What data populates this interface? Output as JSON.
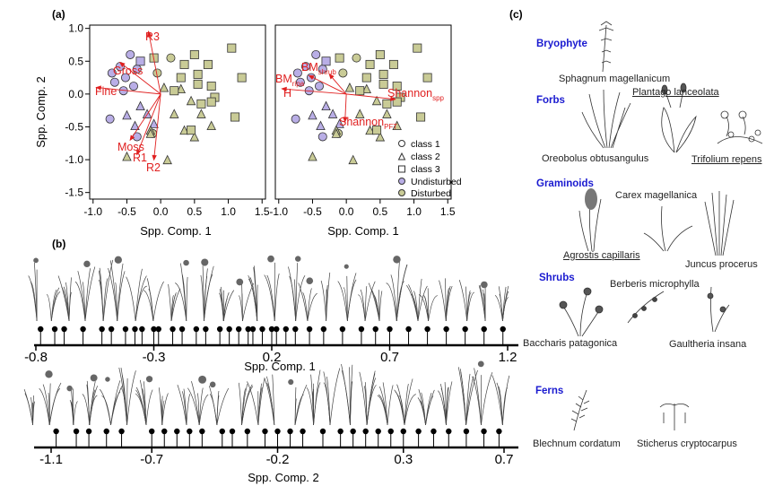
{
  "panel_labels": {
    "a": "(a)",
    "b": "(b)",
    "c": "(c)"
  },
  "panel_a": {
    "ylabel": "Spp. Comp. 2",
    "xlabel": "Spp. Comp. 1",
    "x_ticks": [
      "-1.0",
      "-0.5",
      "0.0",
      "0.5",
      "1.0",
      "1.5"
    ],
    "y_ticks": [
      "1.0",
      "0.5",
      "0.0",
      "-0.5",
      "-1.0",
      "-1.5"
    ],
    "left_vectors": [
      "R3",
      "Gross",
      "Fine",
      "Moss",
      "R1",
      "R2"
    ],
    "right_vectors": {
      "bm_ripa": {
        "base": "BM",
        "sub": "ripa"
      },
      "bm_shrub": {
        "base": "BM",
        "sub": "shrub"
      },
      "h": {
        "base": "H",
        "sub": ""
      },
      "shannon_spp": {
        "base": "Shannon",
        "sub": "spp"
      },
      "shannon_pft": {
        "base": "Shannon",
        "sub": "PFT"
      }
    },
    "legend": [
      "class 1",
      "class 2",
      "class 3",
      "Undisturbed",
      "Disturbed"
    ]
  },
  "panel_b": {
    "axis1_ticks": [
      "-0.8",
      "-0.3",
      "0.2",
      "0.7",
      "1.2"
    ],
    "axis1_label": "Spp. Comp. 1",
    "axis2_ticks": [
      "-1.1",
      "-0.7",
      "-0.2",
      "0.3",
      "0.7"
    ],
    "axis2_label": "Spp. Comp. 2"
  },
  "panel_c": {
    "groups": {
      "bryophyte": "Bryophyte",
      "forbs": "Forbs",
      "graminoids": "Graminoids",
      "shrubs": "Shrubs",
      "ferns": "Ferns"
    },
    "species": {
      "sphagnum": "Sphagnum magellanicum",
      "plantago": "Plantago lanceolata",
      "oreobolus": "Oreobolus obtusangulus",
      "trifolium": "Trifolium repens",
      "carex": "Carex magellanica",
      "agrostis": "Agrostis capillaris",
      "juncus": "Juncus procerus",
      "berberis": "Berberis microphylla",
      "baccharis": "Baccharis patagonica",
      "gaultheria": "Gaultheria insana",
      "blechnum": "Blechnum cordatum",
      "sticherus": "Sticherus cryptocarpus"
    }
  },
  "colors": {
    "undisturbed": "#b9aee6",
    "disturbed": "#c9cb96",
    "vector": "#e02020",
    "group_heading": "#1a1ad0"
  },
  "chart_data": [
    {
      "type": "scatter",
      "panel": "a-left",
      "xlabel": "Spp. Comp. 1",
      "ylabel": "Spp. Comp. 2",
      "xlim": [
        -1.05,
        1.55
      ],
      "ylim": [
        -1.6,
        1.05
      ],
      "series": [
        {
          "name": "Undisturbed",
          "points": [
            {
              "x": -0.72,
              "y": 0.32,
              "class": 1
            },
            {
              "x": -0.6,
              "y": 0.42,
              "class": 1
            },
            {
              "x": -0.45,
              "y": 0.6,
              "class": 1
            },
            {
              "x": -0.52,
              "y": 0.25,
              "class": 1
            },
            {
              "x": -0.4,
              "y": 0.12,
              "class": 1
            },
            {
              "x": -0.68,
              "y": 0.18,
              "class": 1
            },
            {
              "x": -0.55,
              "y": 0.05,
              "class": 1
            },
            {
              "x": -0.35,
              "y": 0.38,
              "class": 1
            },
            {
              "x": -0.75,
              "y": -0.38,
              "class": 1
            },
            {
              "x": -0.35,
              "y": -0.65,
              "class": 1
            },
            {
              "x": -0.3,
              "y": -0.18,
              "class": 2
            },
            {
              "x": -0.5,
              "y": -0.32,
              "class": 2
            },
            {
              "x": -0.1,
              "y": -0.45,
              "class": 2
            },
            {
              "x": -0.38,
              "y": -0.48,
              "class": 2
            },
            {
              "x": -0.2,
              "y": -0.3,
              "class": 2
            },
            {
              "x": -0.3,
              "y": 0.5,
              "class": 3
            }
          ]
        },
        {
          "name": "Disturbed",
          "points": [
            {
              "x": -0.05,
              "y": 0.32,
              "class": 1
            },
            {
              "x": 0.15,
              "y": 0.55,
              "class": 1
            },
            {
              "x": -0.12,
              "y": -0.6,
              "class": 1
            },
            {
              "x": 0.05,
              "y": 0.1,
              "class": 2
            },
            {
              "x": 0.3,
              "y": 0.08,
              "class": 2
            },
            {
              "x": 0.45,
              "y": -0.1,
              "class": 2
            },
            {
              "x": 0.6,
              "y": -0.3,
              "class": 2
            },
            {
              "x": 0.2,
              "y": -0.3,
              "class": 2
            },
            {
              "x": 0.35,
              "y": -0.55,
              "class": 2
            },
            {
              "x": 0.75,
              "y": -0.48,
              "class": 2
            },
            {
              "x": 0.5,
              "y": -0.65,
              "class": 2
            },
            {
              "x": 0.1,
              "y": -1.0,
              "class": 2
            },
            {
              "x": -0.15,
              "y": -0.55,
              "class": 2
            },
            {
              "x": -0.5,
              "y": -0.95,
              "class": 2
            },
            {
              "x": -0.15,
              "y": -0.6,
              "class": 2
            },
            {
              "x": 0.35,
              "y": 0.45,
              "class": 3
            },
            {
              "x": 0.5,
              "y": 0.6,
              "class": 3
            },
            {
              "x": 0.7,
              "y": 0.45,
              "class": 3
            },
            {
              "x": 0.55,
              "y": 0.3,
              "class": 3
            },
            {
              "x": 0.3,
              "y": 0.25,
              "class": 3
            },
            {
              "x": 0.75,
              "y": 0.12,
              "class": 3
            },
            {
              "x": 0.6,
              "y": -0.15,
              "class": 3
            },
            {
              "x": 0.8,
              "y": -0.05,
              "class": 3
            },
            {
              "x": 1.05,
              "y": 0.7,
              "class": 3
            },
            {
              "x": 1.2,
              "y": 0.25,
              "class": 3
            },
            {
              "x": 0.2,
              "y": 0.05,
              "class": 3
            },
            {
              "x": 0.45,
              "y": -0.55,
              "class": 3
            },
            {
              "x": 0.75,
              "y": -0.12,
              "class": 3
            },
            {
              "x": 1.1,
              "y": -0.35,
              "class": 3
            },
            {
              "x": 0.55,
              "y": 0.15,
              "class": 3
            },
            {
              "x": -0.1,
              "y": 0.55,
              "class": 3
            }
          ]
        }
      ],
      "vectors": [
        {
          "label": "R3",
          "x": -0.18,
          "y": 0.95
        },
        {
          "label": "Gross",
          "x": -0.6,
          "y": 0.48
        },
        {
          "label": "Fine",
          "x": -0.95,
          "y": 0.1
        },
        {
          "label": "Moss",
          "x": -0.45,
          "y": -0.7
        },
        {
          "label": "R1",
          "x": -0.35,
          "y": -0.92
        },
        {
          "label": "R2",
          "x": -0.1,
          "y": -1.0
        }
      ]
    },
    {
      "type": "scatter",
      "panel": "a-right",
      "xlabel": "Spp. Comp. 1",
      "xlim": [
        -1.05,
        1.55
      ],
      "ylim": [
        -1.6,
        1.05
      ],
      "series": [
        {
          "name": "Undisturbed",
          "points": [
            {
              "x": -0.72,
              "y": 0.32,
              "class": 1
            },
            {
              "x": -0.6,
              "y": 0.42,
              "class": 1
            },
            {
              "x": -0.45,
              "y": 0.6,
              "class": 1
            },
            {
              "x": -0.52,
              "y": 0.25,
              "class": 1
            },
            {
              "x": -0.4,
              "y": 0.12,
              "class": 1
            },
            {
              "x": -0.68,
              "y": 0.18,
              "class": 1
            },
            {
              "x": -0.55,
              "y": 0.05,
              "class": 1
            },
            {
              "x": -0.35,
              "y": 0.38,
              "class": 1
            },
            {
              "x": -0.75,
              "y": -0.38,
              "class": 1
            },
            {
              "x": -0.35,
              "y": -0.65,
              "class": 1
            },
            {
              "x": -0.3,
              "y": -0.18,
              "class": 2
            },
            {
              "x": -0.5,
              "y": -0.32,
              "class": 2
            },
            {
              "x": -0.1,
              "y": -0.45,
              "class": 2
            },
            {
              "x": -0.38,
              "y": -0.48,
              "class": 2
            },
            {
              "x": -0.2,
              "y": -0.3,
              "class": 2
            },
            {
              "x": -0.3,
              "y": 0.5,
              "class": 3
            }
          ]
        },
        {
          "name": "Disturbed",
          "points": [
            {
              "x": -0.05,
              "y": 0.32,
              "class": 1
            },
            {
              "x": 0.15,
              "y": 0.55,
              "class": 1
            },
            {
              "x": -0.12,
              "y": -0.6,
              "class": 1
            },
            {
              "x": 0.05,
              "y": 0.1,
              "class": 2
            },
            {
              "x": 0.3,
              "y": 0.08,
              "class": 2
            },
            {
              "x": 0.45,
              "y": -0.1,
              "class": 2
            },
            {
              "x": 0.6,
              "y": -0.3,
              "class": 2
            },
            {
              "x": 0.2,
              "y": -0.3,
              "class": 2
            },
            {
              "x": 0.35,
              "y": -0.55,
              "class": 2
            },
            {
              "x": 0.75,
              "y": -0.48,
              "class": 2
            },
            {
              "x": 0.5,
              "y": -0.65,
              "class": 2
            },
            {
              "x": 0.1,
              "y": -1.0,
              "class": 2
            },
            {
              "x": -0.15,
              "y": -0.55,
              "class": 2
            },
            {
              "x": -0.5,
              "y": -0.95,
              "class": 2
            },
            {
              "x": -0.15,
              "y": -0.6,
              "class": 2
            },
            {
              "x": 0.35,
              "y": 0.45,
              "class": 3
            },
            {
              "x": 0.5,
              "y": 0.6,
              "class": 3
            },
            {
              "x": 0.7,
              "y": 0.45,
              "class": 3
            },
            {
              "x": 0.55,
              "y": 0.3,
              "class": 3
            },
            {
              "x": 0.3,
              "y": 0.25,
              "class": 3
            },
            {
              "x": 0.75,
              "y": 0.12,
              "class": 3
            },
            {
              "x": 0.6,
              "y": -0.15,
              "class": 3
            },
            {
              "x": 0.8,
              "y": -0.05,
              "class": 3
            },
            {
              "x": 1.05,
              "y": 0.7,
              "class": 3
            },
            {
              "x": 1.2,
              "y": 0.25,
              "class": 3
            },
            {
              "x": 0.2,
              "y": 0.05,
              "class": 3
            },
            {
              "x": 0.45,
              "y": -0.55,
              "class": 3
            },
            {
              "x": 0.75,
              "y": -0.12,
              "class": 3
            },
            {
              "x": 1.1,
              "y": -0.35,
              "class": 3
            },
            {
              "x": 0.55,
              "y": 0.15,
              "class": 3
            },
            {
              "x": -0.1,
              "y": 0.55,
              "class": 3
            }
          ]
        }
      ],
      "vectors": [
        {
          "label": "BM ripa",
          "x": -0.55,
          "y": 0.28
        },
        {
          "label": "BM shrub",
          "x": -0.25,
          "y": 0.3
        },
        {
          "label": "H",
          "x": -0.95,
          "y": 0.08
        },
        {
          "label": "Shannon spp",
          "x": 0.72,
          "y": -0.08
        },
        {
          "label": "Shannon PFT",
          "x": -0.02,
          "y": -0.42
        }
      ]
    },
    {
      "type": "scatter",
      "panel": "b-axis1",
      "xlabel": "Spp. Comp. 1",
      "xlim": [
        -0.8,
        1.2
      ],
      "x": [
        -0.78,
        -0.72,
        -0.68,
        -0.6,
        -0.52,
        -0.48,
        -0.42,
        -0.38,
        -0.35,
        -0.3,
        -0.28,
        -0.22,
        -0.18,
        -0.12,
        -0.08,
        -0.02,
        0.02,
        0.06,
        0.1,
        0.12,
        0.16,
        0.2,
        0.22,
        0.26,
        0.3,
        0.36,
        0.42,
        0.5,
        0.58,
        0.64,
        0.7,
        0.78,
        0.86,
        0.94,
        1.02,
        1.1,
        1.18
      ]
    },
    {
      "type": "scatter",
      "panel": "b-axis2",
      "xlabel": "Spp. Comp. 2",
      "xlim": [
        -1.1,
        0.7
      ],
      "x": [
        -1.08,
        -1.0,
        -0.95,
        -0.88,
        -0.82,
        -0.7,
        -0.65,
        -0.6,
        -0.55,
        -0.5,
        -0.42,
        -0.38,
        -0.32,
        -0.25,
        -0.2,
        -0.15,
        -0.1,
        -0.02,
        0.05,
        0.1,
        0.15,
        0.2,
        0.25,
        0.3,
        0.36,
        0.42,
        0.48,
        0.55,
        0.62,
        0.68
      ]
    }
  ]
}
